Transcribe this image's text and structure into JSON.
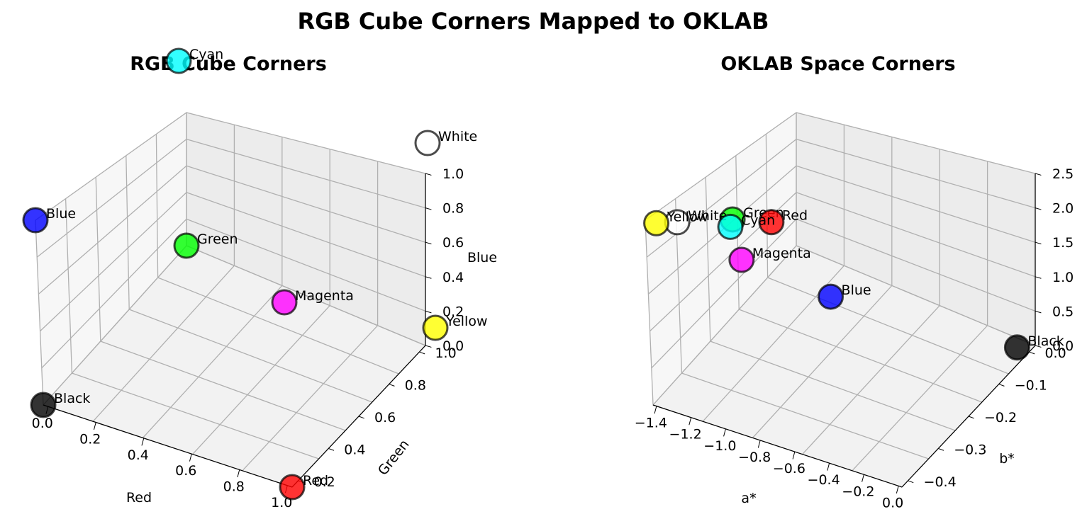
{
  "figure": {
    "title": "RGB Cube Corners Mapped to OKLAB"
  },
  "chart_data": [
    {
      "type": "scatter3d",
      "title": "RGB Cube Corners",
      "xlabel": "Red",
      "ylabel": "Green",
      "zlabel": "Blue",
      "xlim": [
        0,
        1
      ],
      "ylim": [
        0,
        1
      ],
      "zlim": [
        0,
        1
      ],
      "xticks": [
        "0.0",
        "0.2",
        "0.4",
        "0.6",
        "0.8",
        "1.0"
      ],
      "yticks": [
        "0.2",
        "0.4",
        "0.6",
        "0.8",
        "1.0"
      ],
      "zticks": [
        "0.0",
        "0.2",
        "0.4",
        "0.6",
        "0.8",
        "1.0"
      ],
      "grid": true,
      "points": [
        {
          "name": "Black",
          "x": 0,
          "y": 0,
          "z": 0,
          "color": "#000000"
        },
        {
          "name": "Red",
          "x": 1,
          "y": 0,
          "z": 0,
          "color": "#ff0000"
        },
        {
          "name": "Green",
          "x": 0,
          "y": 1,
          "z": 0,
          "color": "#00ff00"
        },
        {
          "name": "Blue",
          "x": 0,
          "y": 0,
          "z": 1,
          "color": "#0000ff"
        },
        {
          "name": "Yellow",
          "x": 1,
          "y": 1,
          "z": 0,
          "color": "#ffff00"
        },
        {
          "name": "Magenta",
          "x": 1,
          "y": 0,
          "z": 1,
          "color": "#ff00ff"
        },
        {
          "name": "Cyan",
          "x": 0,
          "y": 1,
          "z": 1,
          "color": "#00ffff"
        },
        {
          "name": "White",
          "x": 1,
          "y": 1,
          "z": 1,
          "color": "#ffffff"
        }
      ]
    },
    {
      "type": "scatter3d",
      "title": "OKLAB Space Corners",
      "xlabel": "a*",
      "ylabel": "b*",
      "zlabel": "",
      "xlim": [
        -1.5,
        0.05
      ],
      "ylim": [
        -0.43,
        0.07
      ],
      "zlim": [
        0,
        2.6
      ],
      "xticks": [
        "−1.4",
        "−1.2",
        "−1.0",
        "−0.8",
        "−0.6",
        "−0.4",
        "−0.2",
        "0.0"
      ],
      "yticks": [
        "−0.4",
        "−0.3",
        "−0.2",
        "−0.1",
        "0.0"
      ],
      "zticks": [
        "0.0",
        "0.5",
        "1.0",
        "1.5",
        "2.0",
        "2.5"
      ],
      "grid": true,
      "points": [
        {
          "name": "Black",
          "x": 0.0,
          "y": 0.0,
          "z": 0.0,
          "color": "#000000"
        },
        {
          "name": "Blue",
          "x": -1.05,
          "y": -0.06,
          "z": 0.2,
          "color": "#0000ff"
        },
        {
          "name": "Magenta",
          "x": -1.3,
          "y": -0.22,
          "z": 1.25,
          "color": "#ff00ff"
        },
        {
          "name": "Cyan",
          "x": -1.4,
          "y": -0.2,
          "z": 1.55,
          "color": "#00ffff"
        },
        {
          "name": "White",
          "x": -1.45,
          "y": -0.35,
          "z": 2.25,
          "color": "#ffffff"
        },
        {
          "name": "Green",
          "x": -1.1,
          "y": -0.35,
          "z": 2.55,
          "color": "#00ff00"
        },
        {
          "name": "Red",
          "x": -0.95,
          "y": -0.3,
          "z": 2.4,
          "color": "#ff0000"
        },
        {
          "name": "Yellow",
          "x": -1.45,
          "y": -0.42,
          "z": 2.55,
          "color": "#ffff00"
        }
      ]
    }
  ]
}
